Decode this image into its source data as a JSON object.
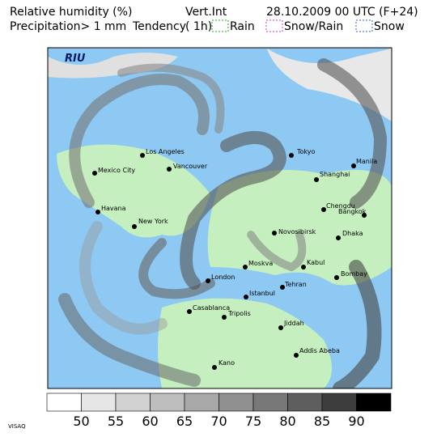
{
  "header": {
    "title": "Relative humidity (%)",
    "subtitle": "Precipitation> 1 mm",
    "tendency": "Tendency",
    "vert": "Vert.Int",
    "period": "( 1h)",
    "rain": "Rain",
    "snow_rain": "Snow/Rain",
    "snow": "Snow",
    "date": "28.10.2009 00 UTC (F+24)"
  },
  "map": {
    "logo": "RIU",
    "cities": [
      "Los Angeles",
      "Tokyo",
      "Vancouver",
      "Mexico City",
      "Manila",
      "Shanghai",
      "Chengdu",
      "Bangkok",
      "Havana",
      "New York",
      "Novosibirsk",
      "Dhaka",
      "Moskva",
      "Kabul",
      "London",
      "Bombay",
      "Tehran",
      "Istanbul",
      "Casablanca",
      "Tripolis",
      "Jiddah",
      "Addis Abeba",
      "Kano"
    ]
  },
  "colorbar": {
    "colors": [
      "#ffffff",
      "#e6e6e6",
      "#d2d2d2",
      "#bebebe",
      "#a8a8a8",
      "#909090",
      "#787878",
      "#5e5e5e",
      "#3c3c3c",
      "#000000"
    ],
    "ticks": [
      50,
      55,
      60,
      65,
      70,
      75,
      80,
      85,
      90
    ]
  },
  "footer": "VISAQ"
}
